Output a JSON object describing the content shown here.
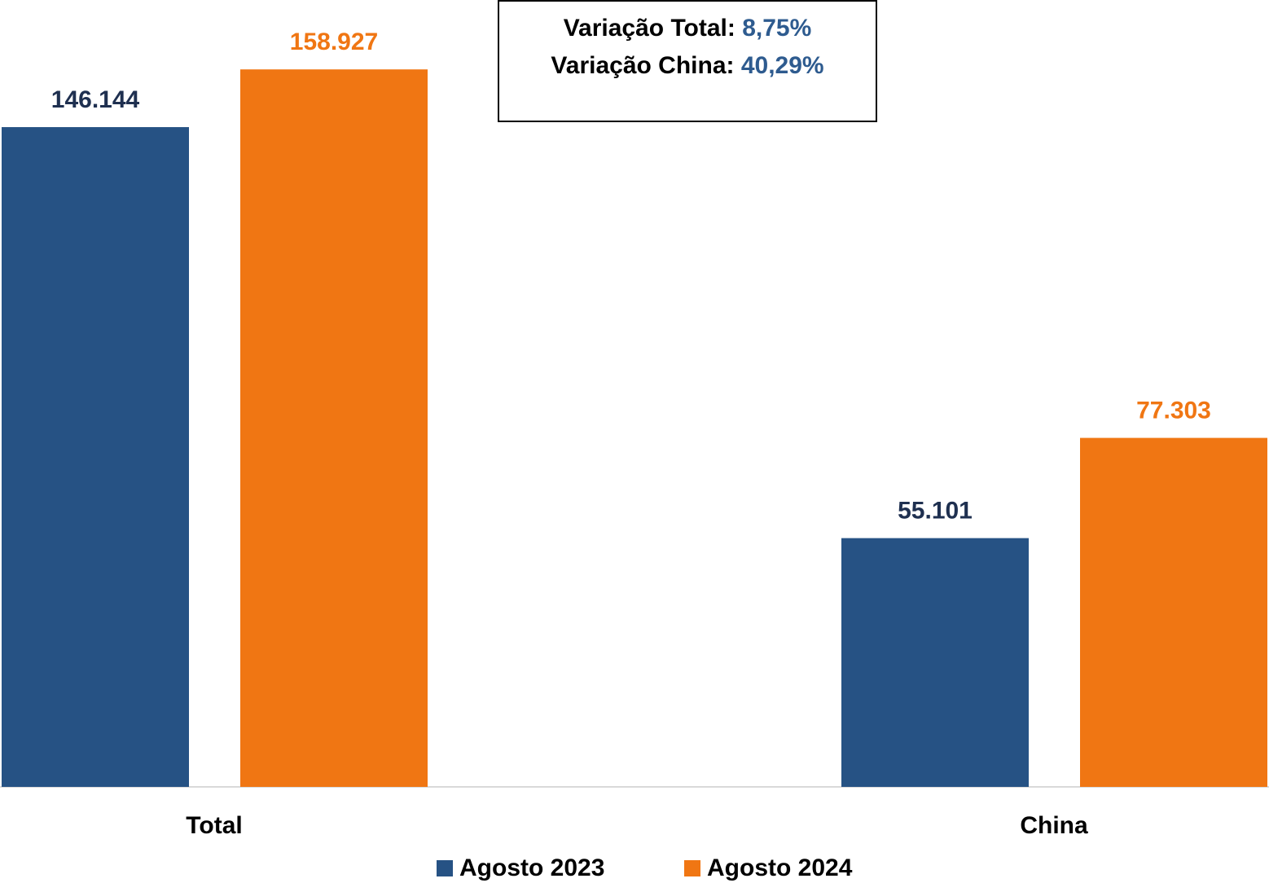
{
  "chart_data": {
    "type": "bar",
    "categories": [
      "Total",
      "China"
    ],
    "series": [
      {
        "name": "Agosto 2023",
        "color": "#265284",
        "label_color": "#1f3050",
        "values": [
          146144,
          55101
        ],
        "value_labels": [
          "146.144",
          "55.101"
        ]
      },
      {
        "name": "Agosto 2024",
        "color": "#f07613",
        "label_color": "#f07613",
        "values": [
          158927,
          77303
        ],
        "value_labels": [
          "158.927",
          "77.303"
        ]
      }
    ],
    "ylim": [
      0,
      174300
    ],
    "annotations": [
      {
        "text": "Variação Total:",
        "value_label": "8,75%"
      },
      {
        "text": "Variação China:",
        "value_label": "40,29%"
      }
    ],
    "legend": "bottom"
  }
}
